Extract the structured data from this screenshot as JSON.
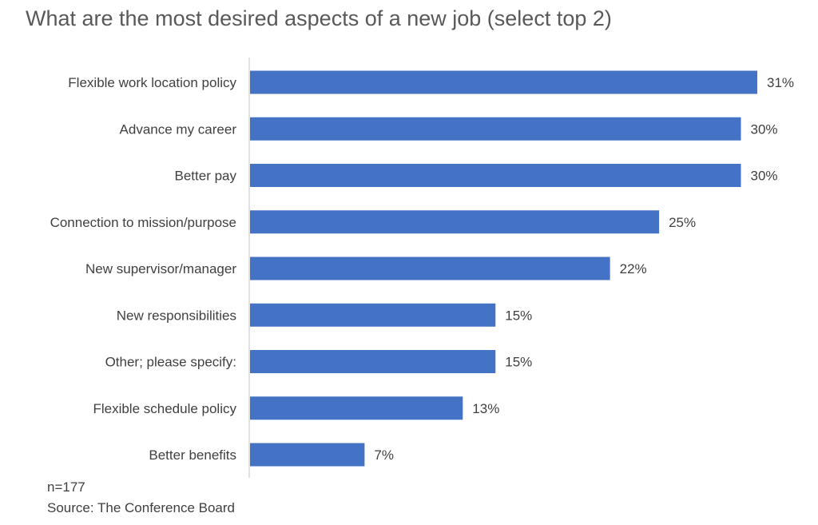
{
  "chart_data": {
    "type": "bar",
    "orientation": "horizontal",
    "title": "What are the most desired aspects of a new job (select top 2)",
    "categories": [
      "Flexible work location policy",
      "Advance my career",
      "Better pay",
      "Connection to mission/purpose",
      "New supervisor/manager",
      "New responsibilities",
      "Other; please specify:",
      "Flexible schedule policy",
      "Better benefits"
    ],
    "values": [
      31,
      30,
      30,
      25,
      22,
      15,
      15,
      13,
      7
    ],
    "value_labels": [
      "31%",
      "30%",
      "30%",
      "25%",
      "22%",
      "15%",
      "15%",
      "13%",
      "7%"
    ],
    "xlim": [
      0,
      31
    ],
    "grid": false,
    "legend": "none",
    "bar_color": "#4472C4"
  },
  "footer": {
    "n": "n=177",
    "source": "Source: The Conference Board"
  }
}
